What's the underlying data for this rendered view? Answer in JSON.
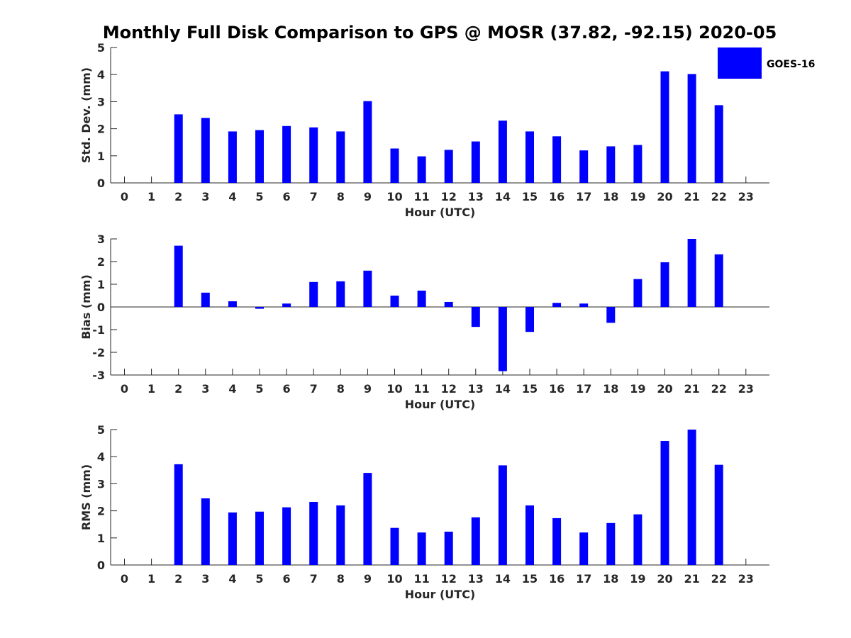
{
  "chart_data": {
    "title": "Monthly Full Disk Comparison to GPS @ MOSR (37.82, -92.15) 2020-05",
    "legend": {
      "placement": "top-right",
      "entries": [
        {
          "label": "GOES-16",
          "color": "#0000ff"
        }
      ]
    },
    "bar_color": "#0000ff",
    "panels": [
      {
        "type": "bar",
        "ylabel": "Std. Dev. (mm)",
        "xlabel": "Hour (UTC)",
        "ylim": [
          0,
          5
        ],
        "yticks": [
          0,
          1,
          2,
          3,
          4,
          5
        ],
        "categories": [
          0,
          1,
          2,
          3,
          4,
          5,
          6,
          7,
          8,
          9,
          10,
          11,
          12,
          13,
          14,
          15,
          16,
          17,
          18,
          19,
          20,
          21,
          22,
          23
        ],
        "values": [
          null,
          null,
          2.53,
          2.4,
          1.9,
          1.95,
          2.1,
          2.05,
          1.9,
          3.02,
          1.27,
          0.98,
          1.22,
          1.53,
          2.3,
          1.9,
          1.72,
          1.2,
          1.35,
          1.4,
          4.12,
          4.02,
          2.87,
          null
        ]
      },
      {
        "type": "bar",
        "ylabel": "Bias (mm)",
        "xlabel": "Hour (UTC)",
        "ylim": [
          -3,
          3
        ],
        "yticks": [
          -3,
          -2,
          -1,
          0,
          1,
          2,
          3
        ],
        "zero_line": true,
        "categories": [
          0,
          1,
          2,
          3,
          4,
          5,
          6,
          7,
          8,
          9,
          10,
          11,
          12,
          13,
          14,
          15,
          16,
          17,
          18,
          19,
          20,
          21,
          22,
          23
        ],
        "values": [
          null,
          null,
          2.7,
          0.63,
          0.25,
          -0.08,
          0.15,
          1.1,
          1.13,
          1.6,
          0.5,
          0.72,
          0.22,
          -0.88,
          -2.83,
          -1.1,
          0.18,
          0.15,
          -0.7,
          1.23,
          1.97,
          3.0,
          2.32,
          null
        ]
      },
      {
        "type": "bar",
        "ylabel": "RMS (mm)",
        "xlabel": "Hour (UTC)",
        "ylim": [
          0,
          5
        ],
        "yticks": [
          0,
          1,
          2,
          3,
          4,
          5
        ],
        "categories": [
          0,
          1,
          2,
          3,
          4,
          5,
          6,
          7,
          8,
          9,
          10,
          11,
          12,
          13,
          14,
          15,
          16,
          17,
          18,
          19,
          20,
          21,
          22,
          23
        ],
        "values": [
          null,
          null,
          3.72,
          2.46,
          1.94,
          1.97,
          2.13,
          2.33,
          2.2,
          3.4,
          1.37,
          1.2,
          1.23,
          1.76,
          3.68,
          2.2,
          1.73,
          1.2,
          1.55,
          1.87,
          4.58,
          5.0,
          3.7,
          null
        ]
      }
    ]
  }
}
